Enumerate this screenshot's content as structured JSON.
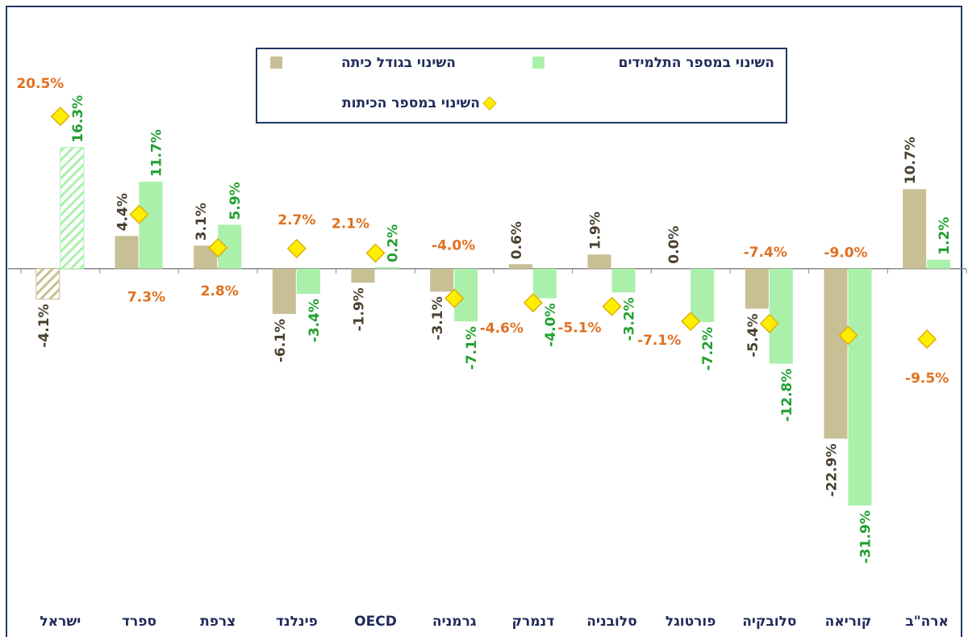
{
  "chart_data": {
    "type": "bar",
    "categories": [
      "ישראל",
      "ספרד",
      "צרפת",
      "פינלנד",
      "OECD",
      "גרמניה",
      "דנמרק",
      "סלובניה",
      "פורטוגל",
      "סלובקיה",
      "קוריאה",
      "ארה\"ב"
    ],
    "ylim": [
      -42,
      34
    ],
    "hatched_index": 0,
    "series": [
      {
        "name": "השינוי בגודל כיתה",
        "type": "bar",
        "color": "#c9bf95",
        "label_color": "#4a4030",
        "values": [
          -4.1,
          4.4,
          3.1,
          -6.1,
          -1.9,
          -3.1,
          0.6,
          1.9,
          0.0,
          -5.4,
          -22.9,
          10.7
        ],
        "value_labels": [
          "-4.1%",
          "4.4%",
          "3.1%",
          "-6.1%",
          "-1.9%",
          "-3.1%",
          "0.6%",
          "1.9%",
          "0.0%",
          "-5.4%",
          "-22.9%",
          "10.7%"
        ]
      },
      {
        "name": "השינוי במספר התלמידים",
        "type": "bar",
        "color": "#aaf0aa",
        "label_color": "#22a030",
        "values": [
          16.3,
          11.7,
          5.9,
          -3.4,
          0.2,
          -7.1,
          -4.0,
          -3.2,
          -7.2,
          -12.8,
          -31.9,
          1.2
        ],
        "value_labels": [
          "16.3%",
          "11.7%",
          "5.9%",
          "-3.4%",
          "0.2%",
          "-7.1%",
          "-4.0%",
          "-3.2%",
          "-7.2%",
          "-12.8%",
          "-31.9%",
          "1.2%"
        ]
      },
      {
        "name": "השינוי במספר הכיתות",
        "type": "scatter",
        "color": "#ffee00",
        "label_color": "#e07020",
        "values": [
          20.5,
          7.3,
          2.8,
          2.7,
          2.1,
          -4.0,
          -4.6,
          -5.1,
          -7.1,
          -7.4,
          -9.0,
          -9.5
        ],
        "value_labels": [
          "20.5%",
          "7.3%",
          "2.8%",
          "2.7%",
          "2.1%",
          "-4.0%",
          "-4.6%",
          "-5.1%",
          "-7.1%",
          "-7.4%",
          "-9.0%",
          "-9.5%"
        ]
      }
    ]
  }
}
